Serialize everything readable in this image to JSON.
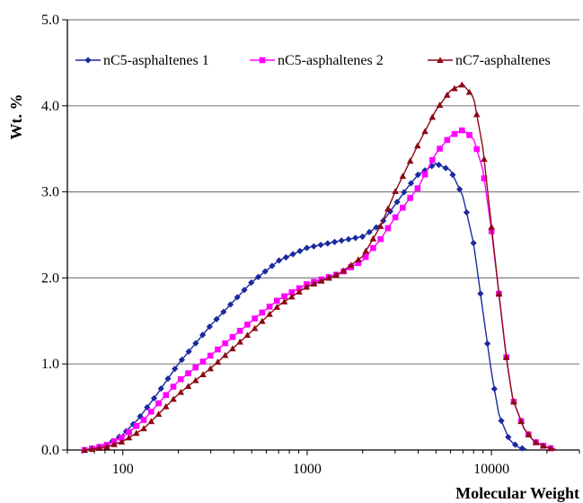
{
  "chart_data": {
    "type": "line",
    "title": "",
    "xlabel": "Molecular Weight",
    "ylabel": "Wt. %",
    "x_scale": "log",
    "xlim": [
      50,
      30000
    ],
    "ylim": [
      0,
      5
    ],
    "x_ticks": [
      100,
      1000,
      10000
    ],
    "x_tick_labels": [
      "100",
      "1000",
      "10000"
    ],
    "y_ticks": [
      0,
      1,
      2,
      3,
      4,
      5
    ],
    "y_tick_labels": [
      "0.0",
      "1.0",
      "2.0",
      "3.0",
      "4.0",
      "5.0"
    ],
    "grid": "horizontal",
    "legend_position": "top",
    "series": [
      {
        "name": "nC5-asphaltenes 1",
        "color": "#1a2a9e",
        "marker": "diamond",
        "points": [
          [
            62,
            0.0
          ],
          [
            80,
            0.05
          ],
          [
            100,
            0.18
          ],
          [
            120,
            0.35
          ],
          [
            150,
            0.62
          ],
          [
            200,
            1.0
          ],
          [
            300,
            1.45
          ],
          [
            500,
            1.95
          ],
          [
            700,
            2.2
          ],
          [
            1000,
            2.35
          ],
          [
            1500,
            2.43
          ],
          [
            2000,
            2.48
          ],
          [
            2500,
            2.62
          ],
          [
            3000,
            2.85
          ],
          [
            3500,
            3.05
          ],
          [
            4000,
            3.2
          ],
          [
            5000,
            3.33
          ],
          [
            6000,
            3.25
          ],
          [
            7000,
            2.95
          ],
          [
            8000,
            2.4
          ],
          [
            9000,
            1.6
          ],
          [
            10000,
            0.9
          ],
          [
            11000,
            0.4
          ],
          [
            12500,
            0.12
          ],
          [
            14000,
            0.03
          ],
          [
            16000,
            0.0
          ]
        ]
      },
      {
        "name": "nC5-asphaltenes 2",
        "color": "#ff00ff",
        "marker": "square",
        "points": [
          [
            62,
            0.0
          ],
          [
            80,
            0.05
          ],
          [
            100,
            0.15
          ],
          [
            130,
            0.35
          ],
          [
            150,
            0.5
          ],
          [
            200,
            0.8
          ],
          [
            300,
            1.1
          ],
          [
            500,
            1.5
          ],
          [
            700,
            1.75
          ],
          [
            1000,
            1.93
          ],
          [
            1500,
            2.05
          ],
          [
            2000,
            2.2
          ],
          [
            2500,
            2.45
          ],
          [
            3000,
            2.7
          ],
          [
            4000,
            3.05
          ],
          [
            5000,
            3.45
          ],
          [
            6000,
            3.65
          ],
          [
            7000,
            3.72
          ],
          [
            8000,
            3.62
          ],
          [
            9000,
            3.25
          ],
          [
            10000,
            2.55
          ],
          [
            11000,
            1.8
          ],
          [
            12000,
            1.1
          ],
          [
            13000,
            0.6
          ],
          [
            15000,
            0.25
          ],
          [
            17000,
            0.1
          ],
          [
            20000,
            0.03
          ],
          [
            23000,
            0.0
          ]
        ]
      },
      {
        "name": "nC7-asphaltenes",
        "color": "#8b0a14",
        "marker": "triangle",
        "points": [
          [
            62,
            0.0
          ],
          [
            80,
            0.03
          ],
          [
            100,
            0.1
          ],
          [
            130,
            0.25
          ],
          [
            150,
            0.38
          ],
          [
            200,
            0.65
          ],
          [
            300,
            0.95
          ],
          [
            500,
            1.38
          ],
          [
            700,
            1.68
          ],
          [
            1000,
            1.9
          ],
          [
            1500,
            2.05
          ],
          [
            2000,
            2.25
          ],
          [
            2500,
            2.6
          ],
          [
            3000,
            3.0
          ],
          [
            4000,
            3.55
          ],
          [
            5000,
            3.95
          ],
          [
            6000,
            4.18
          ],
          [
            7000,
            4.25
          ],
          [
            8000,
            4.1
          ],
          [
            9000,
            3.5
          ],
          [
            10000,
            2.6
          ],
          [
            11000,
            1.8
          ],
          [
            12000,
            1.1
          ],
          [
            13000,
            0.6
          ],
          [
            15000,
            0.25
          ],
          [
            17000,
            0.1
          ],
          [
            20000,
            0.03
          ],
          [
            23000,
            0.0
          ]
        ]
      }
    ]
  }
}
